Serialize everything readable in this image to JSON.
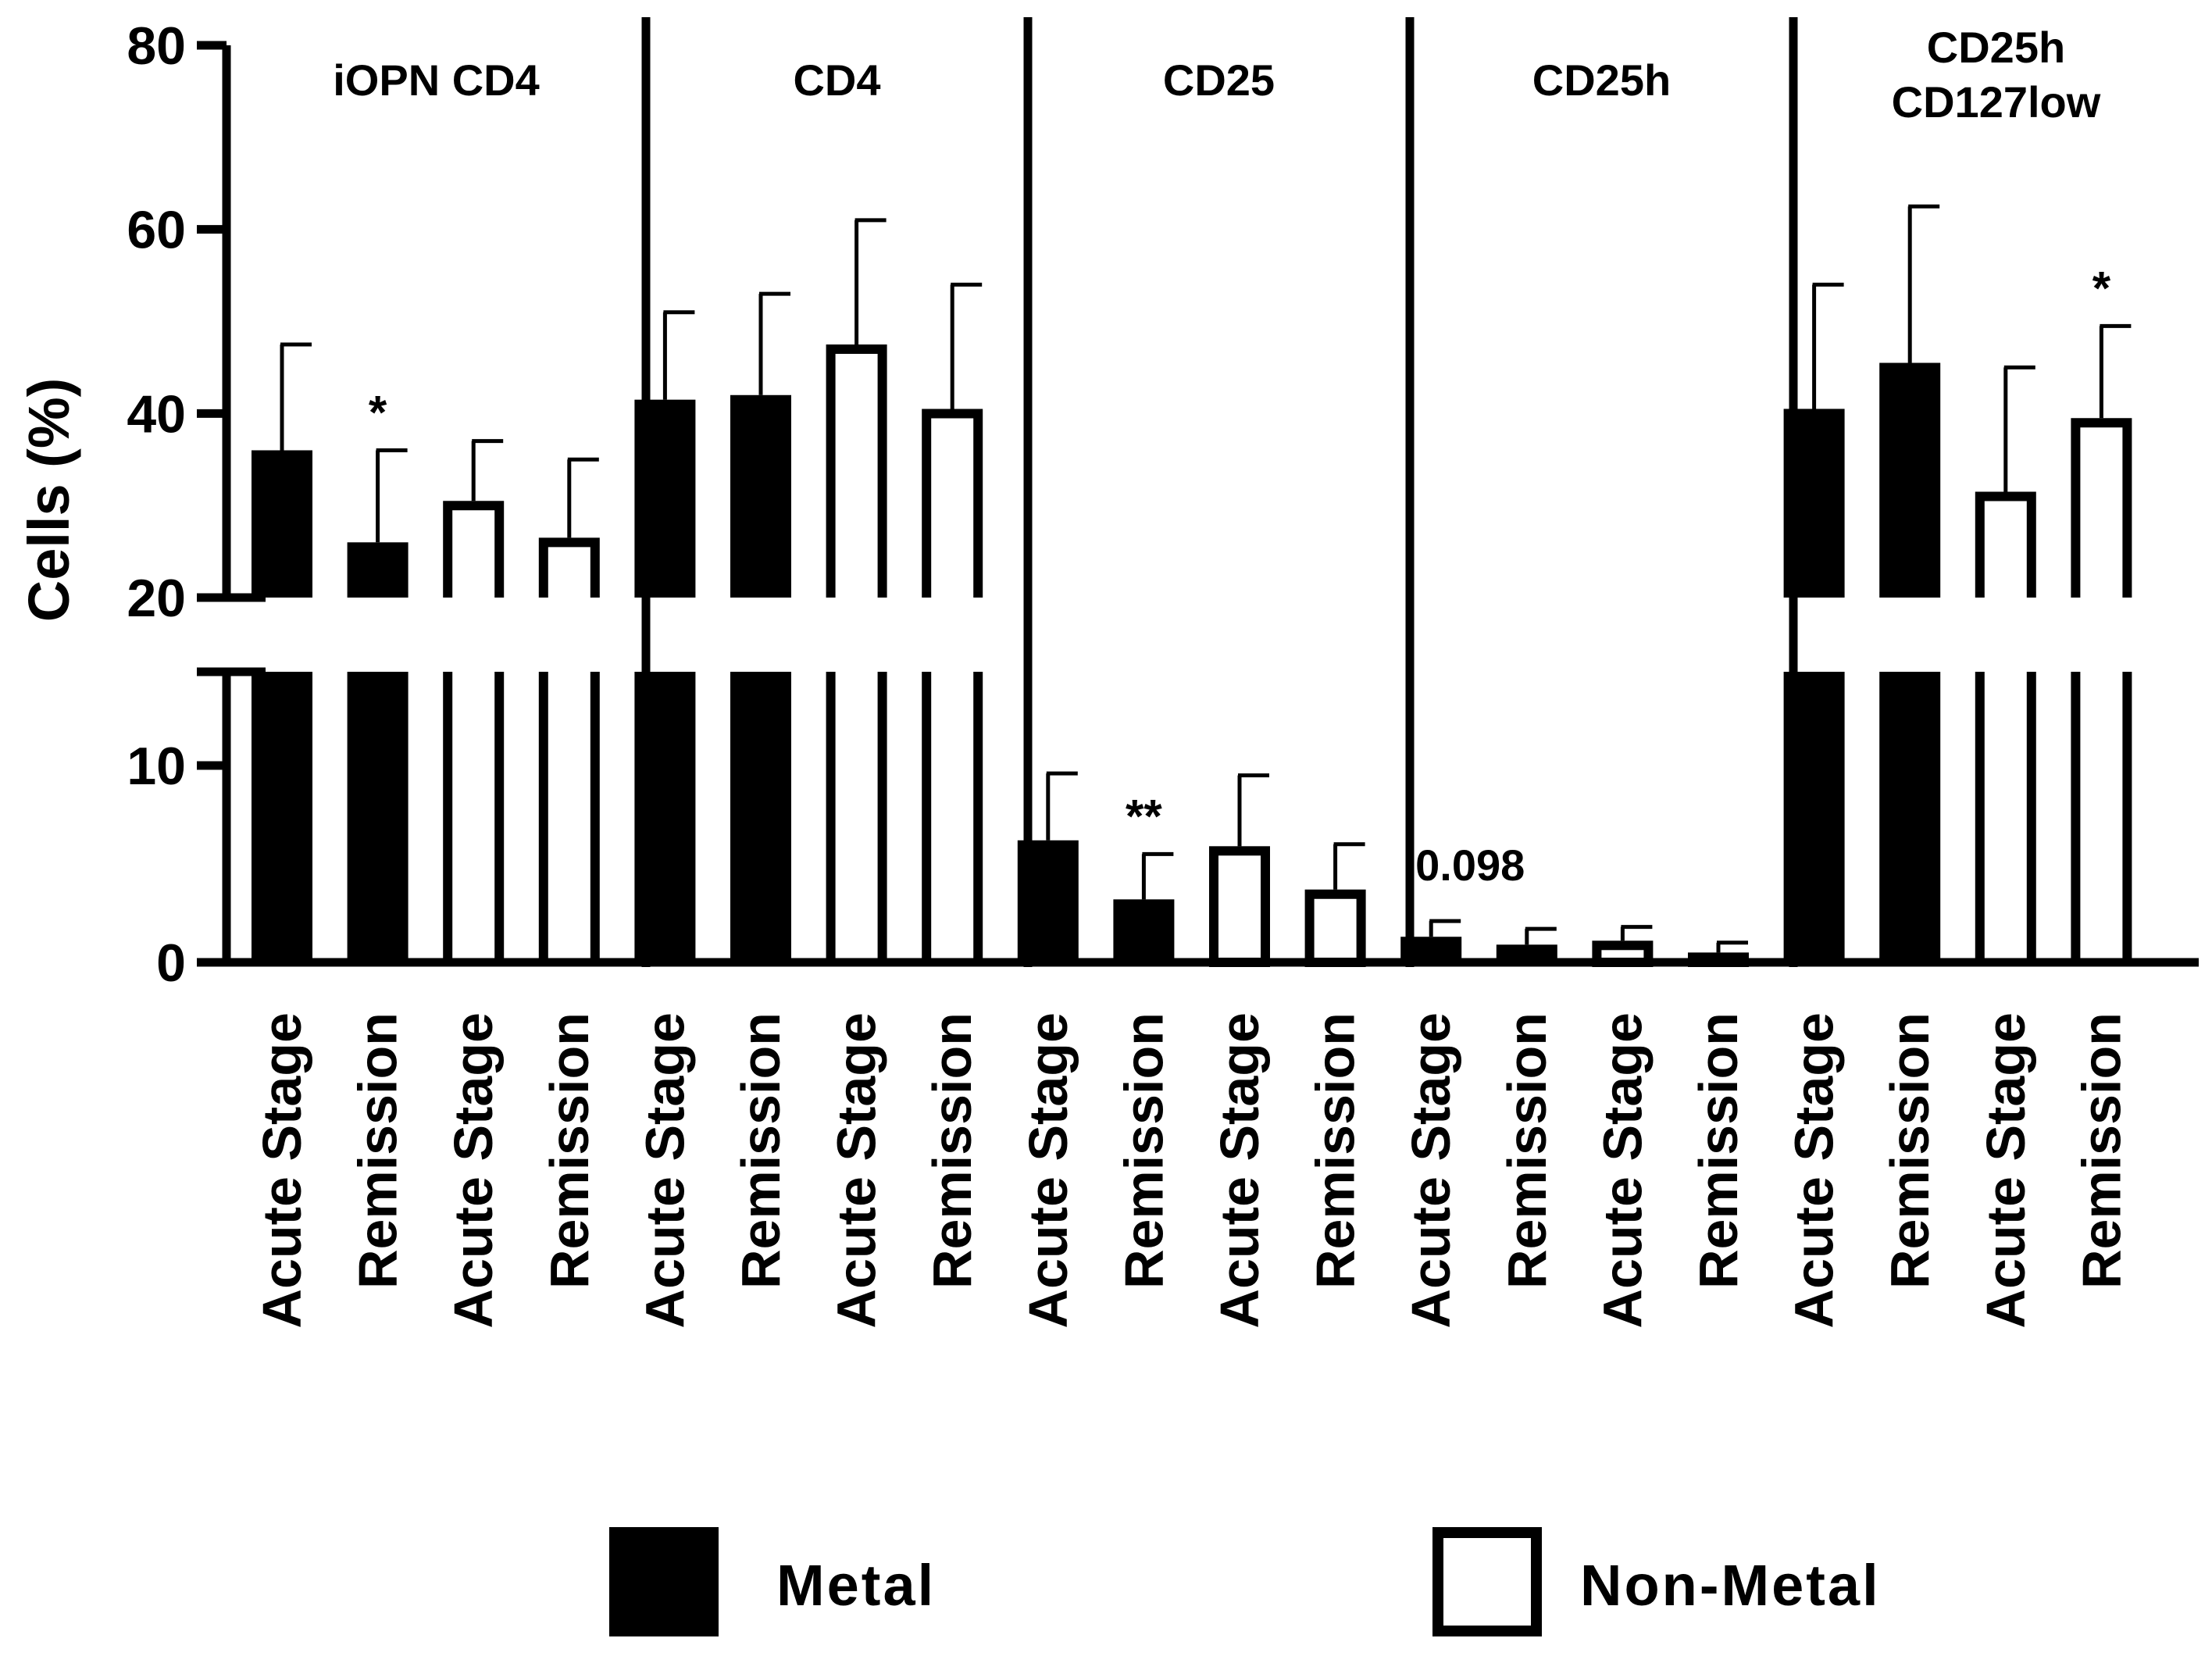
{
  "chart_data": {
    "type": "bar",
    "ylabel": "Cells (%)",
    "y_axis": {
      "broken": true,
      "lower_segment": {
        "range": [
          0,
          15
        ],
        "ticks": [
          0,
          10
        ]
      },
      "upper_segment": {
        "range": [
          20,
          80
        ],
        "ticks": [
          20,
          40,
          60,
          80
        ]
      },
      "tick_labels": [
        "0",
        "10",
        "20",
        "40",
        "60",
        "80"
      ]
    },
    "series_legend": [
      {
        "name": "Metal",
        "fill": "#000000"
      },
      {
        "name": "Non-Metal",
        "fill": "#ffffff"
      }
    ],
    "groups": [
      {
        "title_lines": [
          "iOPN CD4"
        ],
        "bars": [
          {
            "label": "Acute Stage",
            "series": "Metal",
            "value": 36,
            "error": 11.5
          },
          {
            "label": "Remission",
            "series": "Metal",
            "value": 26,
            "error": 10
          },
          {
            "label": "Acute Stage",
            "series": "Non-Metal",
            "value": 30.5,
            "error": 6.5
          },
          {
            "label": "Remission",
            "series": "Non-Metal",
            "value": 26.5,
            "error": 8.5
          }
        ],
        "annotations": [
          {
            "text": "*",
            "bar_index": 1
          }
        ]
      },
      {
        "title_lines": [
          "CD4"
        ],
        "bars": [
          {
            "label": "Acute Stage",
            "series": "Metal",
            "value": 41.5,
            "error": 9.5
          },
          {
            "label": "Remission",
            "series": "Metal",
            "value": 42,
            "error": 11
          },
          {
            "label": "Acute Stage",
            "series": "Non-Metal",
            "value": 47.5,
            "error": 13.5
          },
          {
            "label": "Remission",
            "series": "Non-Metal",
            "value": 40.5,
            "error": 13.5
          }
        ],
        "annotations": []
      },
      {
        "title_lines": [
          "CD25"
        ],
        "bars": [
          {
            "label": "Acute Stage",
            "series": "Metal",
            "value": 6.2,
            "error": 3.4
          },
          {
            "label": "Remission",
            "series": "Metal",
            "value": 3.2,
            "error": 2.3
          },
          {
            "label": "Acute Stage",
            "series": "Non-Metal",
            "value": 5.9,
            "error": 3.6
          },
          {
            "label": "Remission",
            "series": "Non-Metal",
            "value": 3.7,
            "error": 2.3
          }
        ],
        "annotations": [
          {
            "text": "**",
            "bar_index": 1
          }
        ]
      },
      {
        "title_lines": [
          "CD25h"
        ],
        "bars": [
          {
            "label": "Acute Stage",
            "series": "Metal",
            "value": 1.3,
            "error": 0.8
          },
          {
            "label": "Remission",
            "series": "Metal",
            "value": 0.9,
            "error": 0.8
          },
          {
            "label": "Acute Stage",
            "series": "Non-Metal",
            "value": 1.1,
            "error": 0.7
          },
          {
            "label": "Remission",
            "series": "Non-Metal",
            "value": 0.5,
            "error": 0.5
          }
        ],
        "annotations": [
          {
            "text": "0.098",
            "bar_index": 0
          }
        ]
      },
      {
        "title_lines": [
          "CD25h",
          "CD127low"
        ],
        "bars": [
          {
            "label": "Acute Stage",
            "series": "Metal",
            "value": 40.5,
            "error": 13.5
          },
          {
            "label": "Remission",
            "series": "Metal",
            "value": 45.5,
            "error": 17
          },
          {
            "label": "Acute Stage",
            "series": "Non-Metal",
            "value": 31.5,
            "error": 13.5
          },
          {
            "label": "Remission",
            "series": "Non-Metal",
            "value": 39.5,
            "error": 10
          }
        ],
        "annotations": [
          {
            "text": "*",
            "bar_index": 3
          }
        ]
      }
    ]
  }
}
